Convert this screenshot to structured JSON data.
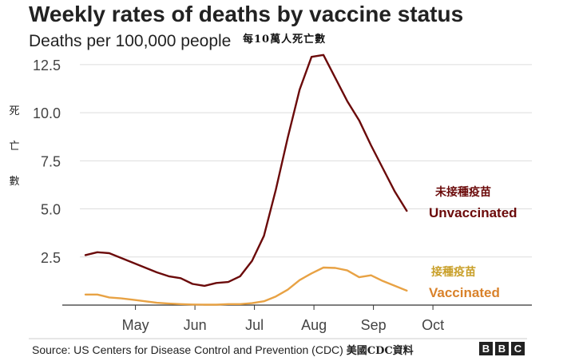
{
  "title": "Weekly rates of deaths by vaccine status",
  "subtitle": "Deaths per 100,000 people",
  "subtitle_zh": "每10萬人死亡數",
  "ylabel_zh": [
    "死",
    "亡",
    "數"
  ],
  "source": "Source: US Centers for Disease Control and Prevention (CDC)",
  "source_zh": "美國CDC資料",
  "brand": [
    "B",
    "B",
    "C"
  ],
  "chart_data": {
    "type": "line",
    "title": "Weekly rates of deaths by vaccine status",
    "ylabel": "Deaths per 100,000 people",
    "ylim": [
      0,
      13.2
    ],
    "xlim": [
      0,
      30
    ],
    "yticks": [
      2.5,
      5.0,
      7.5,
      10.0,
      12.5
    ],
    "ytick_labels": [
      "2.5",
      "5.0",
      "7.5",
      "10.0",
      "12.5"
    ],
    "xticks": [
      4,
      9,
      14,
      19,
      24,
      29
    ],
    "xtick_labels": [
      "May",
      "Jun",
      "Jul",
      "Aug",
      "Sep",
      "Oct"
    ],
    "grid": true,
    "series": [
      {
        "name": "Unvaccinated",
        "name_zh": "未接種疫苗",
        "color": "#6b0a0a",
        "x": [
          0,
          1,
          2,
          3,
          4,
          5,
          6,
          7,
          8,
          9,
          10,
          11,
          12,
          13,
          14,
          15,
          16,
          17,
          18,
          19,
          20,
          21,
          22,
          23,
          24,
          25,
          26,
          27,
          28,
          29
        ],
        "values": [
          2.6,
          2.75,
          2.7,
          2.45,
          2.2,
          1.95,
          1.7,
          1.5,
          1.4,
          1.1,
          1.0,
          1.15,
          1.2,
          1.5,
          2.3,
          3.6,
          6.0,
          8.7,
          11.2,
          12.9,
          13.0,
          11.8,
          10.6,
          9.6,
          8.3,
          7.1,
          5.9,
          4.9,
          null,
          null
        ],
        "x_trim": [
          0,
          1,
          2,
          3,
          4,
          5,
          6,
          7,
          8,
          9,
          10,
          11,
          12,
          13,
          14,
          15,
          16,
          17,
          18,
          19,
          20,
          21,
          22,
          23,
          24,
          25,
          26,
          27
        ],
        "values_trim": [
          2.6,
          2.75,
          2.7,
          2.45,
          2.2,
          1.95,
          1.7,
          1.5,
          1.4,
          1.1,
          1.0,
          1.15,
          1.2,
          1.5,
          2.3,
          3.6,
          6.0,
          8.7,
          11.2,
          12.9,
          13.0,
          11.8,
          10.6,
          9.6,
          8.3,
          7.1,
          5.9,
          4.9
        ]
      },
      {
        "name": "Vaccinated",
        "name_zh": "接種疫苗",
        "color": "#e8a244",
        "label_color": "#d9822b",
        "x": [
          0,
          1,
          2,
          3,
          4,
          5,
          6,
          7,
          8,
          9,
          10,
          11,
          12,
          13,
          14,
          15,
          16,
          17,
          18,
          19,
          20,
          21,
          22,
          23,
          24,
          25,
          26,
          27
        ],
        "values": [
          0.55,
          0.55,
          0.4,
          0.35,
          0.28,
          0.2,
          0.12,
          0.08,
          0.05,
          0.03,
          0.02,
          0.02,
          0.05,
          0.05,
          0.1,
          0.2,
          0.45,
          0.8,
          1.3,
          1.65,
          1.95,
          1.93,
          1.8,
          1.45,
          1.55,
          1.25,
          1.0,
          0.75
        ]
      }
    ],
    "annotations": [
      {
        "series": "Unvaccinated",
        "text": "Unvaccinated",
        "text_zh": "未接種疫苗"
      },
      {
        "series": "Vaccinated",
        "text": "Vaccinated",
        "text_zh": "接種疫苗"
      }
    ]
  }
}
